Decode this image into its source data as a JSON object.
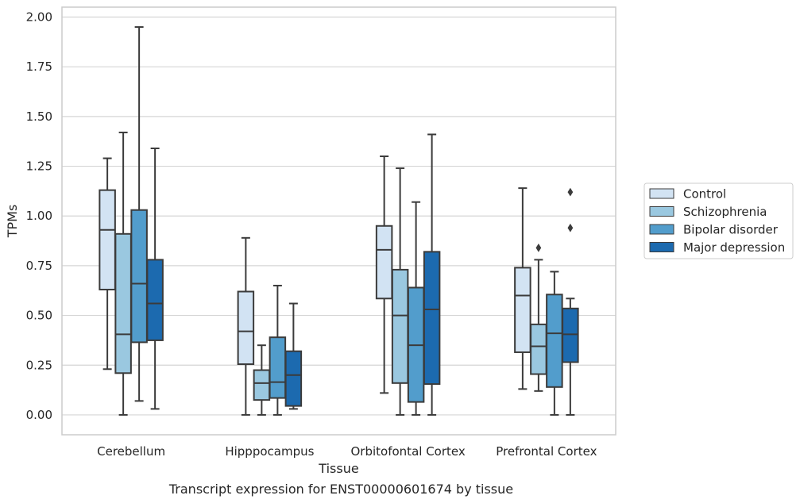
{
  "caption": "Transcript expression for ENST00000601674 by tissue",
  "chart_data": {
    "type": "box",
    "xlabel": "Tissue",
    "ylabel": "TPMs",
    "ylim": [
      -0.1,
      2.05
    ],
    "yticks": [
      0.0,
      0.25,
      0.5,
      0.75,
      1.0,
      1.25,
      1.5,
      1.75,
      2.0
    ],
    "ytick_labels": [
      "0.00",
      "0.25",
      "0.50",
      "0.75",
      "1.00",
      "1.25",
      "1.50",
      "1.75",
      "2.00"
    ],
    "grid": "horizontal",
    "legend_position": "right",
    "categories": [
      "Cerebellum",
      "Hipppocampus",
      "Orbitofontal Cortex",
      "Prefrontal Cortex"
    ],
    "series": [
      {
        "name": "Control",
        "color": "#d2e3f3",
        "boxes": [
          {
            "min": 0.23,
            "q1": 0.63,
            "median": 0.93,
            "q3": 1.13,
            "max": 1.29,
            "outliers": []
          },
          {
            "min": 0.0,
            "q1": 0.255,
            "median": 0.42,
            "q3": 0.62,
            "max": 0.89,
            "outliers": []
          },
          {
            "min": 0.11,
            "q1": 0.585,
            "median": 0.83,
            "q3": 0.95,
            "max": 1.3,
            "outliers": []
          },
          {
            "min": 0.13,
            "q1": 0.315,
            "median": 0.6,
            "q3": 0.74,
            "max": 1.14,
            "outliers": []
          }
        ]
      },
      {
        "name": "Schizophrenia",
        "color": "#9ac8e0",
        "boxes": [
          {
            "min": 0.0,
            "q1": 0.21,
            "median": 0.405,
            "q3": 0.91,
            "max": 1.42,
            "outliers": []
          },
          {
            "min": 0.0,
            "q1": 0.075,
            "median": 0.16,
            "q3": 0.225,
            "max": 0.35,
            "outliers": []
          },
          {
            "min": 0.0,
            "q1": 0.16,
            "median": 0.5,
            "q3": 0.73,
            "max": 1.24,
            "outliers": []
          },
          {
            "min": 0.12,
            "q1": 0.205,
            "median": 0.345,
            "q3": 0.455,
            "max": 0.78,
            "outliers": [
              0.84
            ]
          }
        ]
      },
      {
        "name": "Bipolar disorder",
        "color": "#529dcc",
        "boxes": [
          {
            "min": 0.07,
            "q1": 0.365,
            "median": 0.66,
            "q3": 1.03,
            "max": 1.95,
            "outliers": []
          },
          {
            "min": 0.0,
            "q1": 0.085,
            "median": 0.165,
            "q3": 0.39,
            "max": 0.65,
            "outliers": []
          },
          {
            "min": 0.0,
            "q1": 0.065,
            "median": 0.35,
            "q3": 0.64,
            "max": 1.07,
            "outliers": []
          },
          {
            "min": 0.0,
            "q1": 0.14,
            "median": 0.41,
            "q3": 0.605,
            "max": 0.72,
            "outliers": []
          }
        ]
      },
      {
        "name": "Major depression",
        "color": "#1c6aaf",
        "boxes": [
          {
            "min": 0.03,
            "q1": 0.375,
            "median": 0.56,
            "q3": 0.78,
            "max": 1.34,
            "outliers": []
          },
          {
            "min": 0.03,
            "q1": 0.045,
            "median": 0.2,
            "q3": 0.32,
            "max": 0.56,
            "outliers": []
          },
          {
            "min": 0.0,
            "q1": 0.155,
            "median": 0.53,
            "q3": 0.82,
            "max": 1.41,
            "outliers": []
          },
          {
            "min": 0.0,
            "q1": 0.265,
            "median": 0.405,
            "q3": 0.535,
            "max": 0.585,
            "outliers": [
              0.94,
              1.12
            ]
          }
        ]
      }
    ]
  }
}
